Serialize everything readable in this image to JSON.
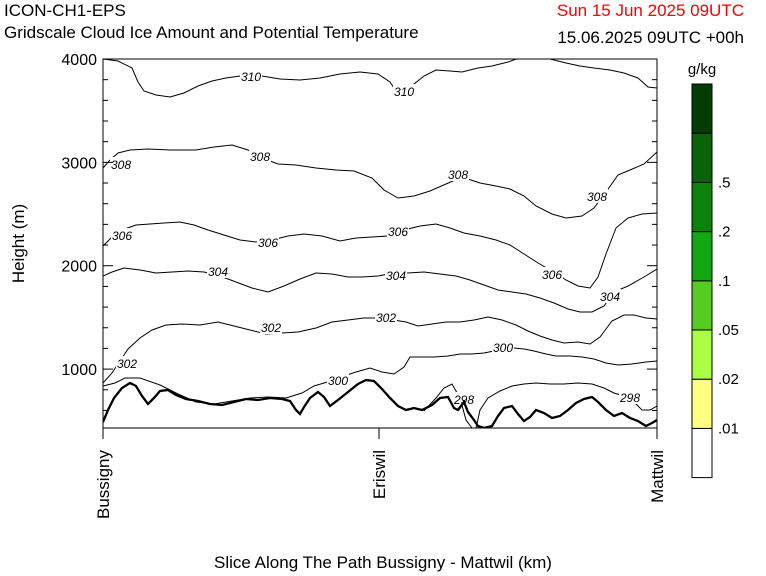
{
  "header": {
    "model": "ICON-CH1-EPS",
    "subtitle": "Gridscale Cloud Ice Amount and Potential Temperature",
    "valid_time": "Sun 15 Jun 2025 09UTC",
    "run_info": "15.06.2025 09UTC +00h",
    "valid_color": "#ff0000"
  },
  "chart_data": {
    "type": "contour-cross-section",
    "xlabel": "Slice Along The Path Bussigny - Mattwil (km)",
    "ylabel": "Height (m)",
    "ylim": [
      430,
      4000
    ],
    "x_positions": [
      "Bussigny",
      "Eriswil",
      "Mattwil"
    ],
    "y_ticks": [
      1000,
      2000,
      3000,
      4000
    ],
    "colorbar": {
      "unit": "g/kg",
      "thresholds": [
        "",
        ".01",
        ".02",
        ".05",
        ".1",
        ".2",
        ".5",
        ""
      ],
      "colors": [
        "#ffffff",
        "#ffff80",
        "#aaff44",
        "#55cc22",
        "#13a813",
        "#0c820c",
        "#096309",
        "#053c05"
      ]
    },
    "isentropes": [
      {
        "theta": 310,
        "labels": [
          "310",
          "310"
        ]
      },
      {
        "theta": 308,
        "labels": [
          "308",
          "308",
          "308",
          "308"
        ]
      },
      {
        "theta": 306,
        "labels": [
          "306",
          "306",
          "306",
          "306"
        ]
      },
      {
        "theta": 304,
        "labels": [
          "304",
          "304",
          "304"
        ]
      },
      {
        "theta": 302,
        "labels": [
          "302",
          "302",
          "302"
        ]
      },
      {
        "theta": 300,
        "labels": [
          "300",
          "300"
        ]
      },
      {
        "theta": 298,
        "labels": [
          "298",
          "298"
        ]
      }
    ]
  }
}
